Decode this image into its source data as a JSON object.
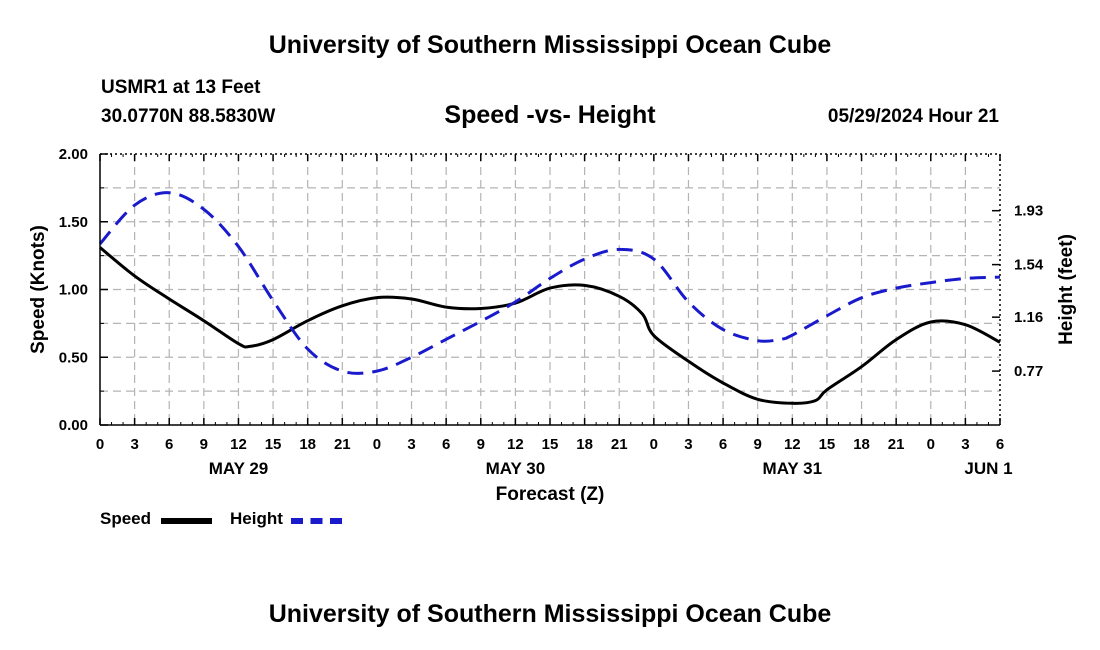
{
  "page": {
    "title": "University of Southern Mississippi Ocean Cube",
    "footer_title": "University of Southern Mississippi Ocean Cube",
    "station": "USMR1 at 13 Feet",
    "coordinates": "30.0770N  88.5830W",
    "subtitle": "Speed -vs- Height",
    "datestamp": "05/29/2024 Hour 21"
  },
  "legend": {
    "speed_label": "Speed",
    "height_label": "Height"
  },
  "colors": {
    "speed": "#000000",
    "height": "#1a1acd",
    "grid": "#b4b4b4"
  },
  "chart_data": {
    "type": "line",
    "title": "Speed -vs- Height",
    "xlabel": "Forecast (Z)",
    "ylabel": "Speed (Knots)",
    "y2label": "Height (feet)",
    "x_unit": "hours since 05/29 00Z",
    "xlim": [
      0,
      78
    ],
    "ylim": [
      0,
      2
    ],
    "y2lim": [
      0.38,
      2.34
    ],
    "x_ticks": [
      0,
      3,
      6,
      9,
      12,
      15,
      18,
      21,
      24,
      27,
      30,
      33,
      36,
      39,
      42,
      45,
      48,
      51,
      54,
      57,
      60,
      63,
      66,
      69,
      72,
      75,
      78
    ],
    "x_tick_labels": [
      "0",
      "3",
      "6",
      "9",
      "12",
      "15",
      "18",
      "21",
      "0",
      "3",
      "6",
      "9",
      "12",
      "15",
      "18",
      "21",
      "0",
      "3",
      "6",
      "9",
      "12",
      "15",
      "18",
      "21",
      "0",
      "3",
      "6"
    ],
    "y_ticks": [
      0,
      0.5,
      1,
      1.5,
      2
    ],
    "y_tick_labels": [
      "0.00",
      "0.50",
      "1.00",
      "1.50",
      "2.00"
    ],
    "y2_ticks": [
      0.77,
      1.16,
      1.54,
      1.93
    ],
    "y2_tick_labels": [
      "0.77",
      "1.16",
      "1.54",
      "1.93"
    ],
    "date_labels": [
      {
        "x": 12,
        "label": "MAY 29"
      },
      {
        "x": 36,
        "label": "MAY 30"
      },
      {
        "x": 60,
        "label": "MAY 31"
      },
      {
        "x": 77,
        "label": "JUN 1"
      }
    ],
    "series": [
      {
        "name": "Speed",
        "axis": "left",
        "style": "solid",
        "x": [
          0,
          3,
          6,
          9,
          12,
          13,
          15,
          18,
          21,
          24,
          27,
          30,
          33,
          36,
          39,
          42,
          45,
          47,
          48,
          51,
          54,
          57,
          60,
          62,
          63,
          66,
          69,
          72,
          75,
          78
        ],
        "y": [
          1.31,
          1.1,
          0.93,
          0.77,
          0.6,
          0.58,
          0.63,
          0.77,
          0.88,
          0.94,
          0.93,
          0.87,
          0.86,
          0.9,
          1.01,
          1.03,
          0.95,
          0.82,
          0.66,
          0.47,
          0.31,
          0.19,
          0.16,
          0.18,
          0.26,
          0.43,
          0.63,
          0.76,
          0.74,
          0.61
        ]
      },
      {
        "name": "Height",
        "axis": "right",
        "style": "dashed",
        "x": [
          0,
          3,
          6,
          9,
          12,
          15,
          18,
          21,
          24,
          27,
          30,
          33,
          36,
          39,
          42,
          45,
          48,
          51,
          54,
          57,
          59,
          60,
          63,
          66,
          69,
          72,
          75,
          78
        ],
        "y": [
          1.69,
          1.97,
          2.06,
          1.94,
          1.67,
          1.28,
          0.93,
          0.77,
          0.77,
          0.87,
          1,
          1.13,
          1.27,
          1.44,
          1.58,
          1.65,
          1.58,
          1.27,
          1.07,
          0.99,
          1,
          1.03,
          1.17,
          1.3,
          1.37,
          1.41,
          1.44,
          1.45
        ]
      }
    ]
  }
}
